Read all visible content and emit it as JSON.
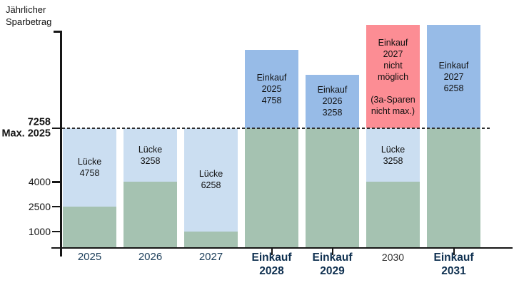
{
  "title": "Jährlicher\nSparbetrag",
  "colors": {
    "saved_green": "#a5c2b1",
    "gap_lightblue": "#cbdef1",
    "einkauf_blue": "#97bbe7",
    "not_possible_red": "#fc8d94",
    "axis": "#161616",
    "year_label": "#1c3e5a",
    "einkauf_label": "#0f3050",
    "plain_label": "#2e2e2e"
  },
  "chart_data": {
    "type": "bar",
    "stacked": true,
    "title": "Jährlicher Sparbetrag",
    "ylabel": "Jährlicher Sparbetrag",
    "xlabel": "",
    "ylim": [
      0,
      13600
    ],
    "grid": false,
    "legend": "none",
    "reference_line": {
      "value": 7258,
      "style": "dashed",
      "meaning": "Max. 2025"
    },
    "yticks": [
      {
        "value": 7258,
        "label": "7258\nMax. 2025",
        "bold": true
      },
      {
        "value": 4000,
        "label": "4000",
        "bold": false
      },
      {
        "value": 2500,
        "label": "2500",
        "bold": false
      },
      {
        "value": 1000,
        "label": "1000",
        "bold": false
      }
    ],
    "categories": [
      "2025",
      "2026",
      "2027",
      "Einkauf 2028",
      "Einkauf 2029",
      "2030",
      "Einkauf 2031"
    ],
    "bars": [
      {
        "label": "2025",
        "label_style": "year",
        "tick": false,
        "segments": [
          {
            "from": 0,
            "to": 2500,
            "color": "saved_green",
            "label": ""
          },
          {
            "from": 2500,
            "to": 7258,
            "color": "gap_lightblue",
            "label": "Lücke\n4758"
          }
        ]
      },
      {
        "label": "2026",
        "label_style": "year",
        "tick": false,
        "segments": [
          {
            "from": 0,
            "to": 4000,
            "color": "saved_green",
            "label": ""
          },
          {
            "from": 4000,
            "to": 7258,
            "color": "gap_lightblue",
            "label": "Lücke\n3258"
          }
        ]
      },
      {
        "label": "2027",
        "label_style": "year",
        "tick": false,
        "segments": [
          {
            "from": 0,
            "to": 1000,
            "color": "saved_green",
            "label": ""
          },
          {
            "from": 1000,
            "to": 7258,
            "color": "gap_lightblue",
            "label": "Lücke\n6258"
          }
        ]
      },
      {
        "label": "Einkauf\n2028",
        "label_style": "einkauf",
        "tick": true,
        "segments": [
          {
            "from": 0,
            "to": 7258,
            "color": "saved_green",
            "label": ""
          },
          {
            "from": 7258,
            "to": 12016,
            "color": "einkauf_blue",
            "label": "Einkauf\n2025\n4758"
          }
        ]
      },
      {
        "label": "Einkauf\n2029",
        "label_style": "einkauf",
        "tick": true,
        "segments": [
          {
            "from": 0,
            "to": 7258,
            "color": "saved_green",
            "label": ""
          },
          {
            "from": 7258,
            "to": 10516,
            "color": "einkauf_blue",
            "label": "Einkauf\n2026\n3258"
          }
        ]
      },
      {
        "label": "2030",
        "label_style": "plain",
        "tick": false,
        "segments": [
          {
            "from": 0,
            "to": 4000,
            "color": "saved_green",
            "label": ""
          },
          {
            "from": 4000,
            "to": 7258,
            "color": "gap_lightblue",
            "label": "Lücke\n3258"
          },
          {
            "from": 7258,
            "to": 13516,
            "color": "not_possible_red",
            "label": "Einkauf\n2027\nnicht\nmöglich\n\n(3a-Sparen\nnicht max.)"
          }
        ]
      },
      {
        "label": "Einkauf\n2031",
        "label_style": "einkauf",
        "tick": true,
        "segments": [
          {
            "from": 0,
            "to": 7258,
            "color": "saved_green",
            "label": ""
          },
          {
            "from": 7258,
            "to": 13516,
            "color": "einkauf_blue",
            "label": "Einkauf\n2027\n6258"
          }
        ]
      }
    ]
  }
}
